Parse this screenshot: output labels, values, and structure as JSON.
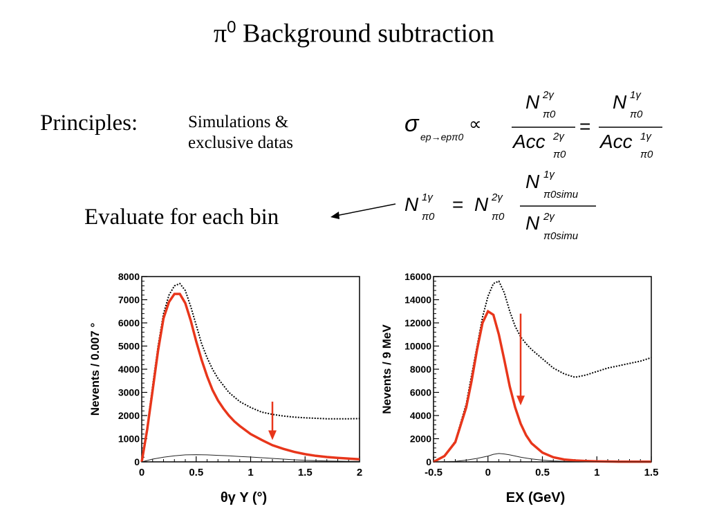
{
  "slide": {
    "title_symbol": "π",
    "title_sup": "0",
    "title_text": " Background subtraction",
    "principles_label": "Principles:",
    "simulations_text": "Simulations & exclusive datas",
    "evaluate_text": "Evaluate for each bin"
  },
  "equations": {
    "sigma": "σ",
    "sigma_sub": "ep→epπ0",
    "prop": "∝",
    "equals": "=",
    "N": "N",
    "Acc": "Acc",
    "pi0": "π0",
    "two_gamma": "2γ",
    "one_gamma": "1γ",
    "pi0_simu": "π0simu"
  },
  "chart_data": [
    {
      "type": "line",
      "xlabel": "θγ Y (°)",
      "ylabel": "Nevents / 0.007 °",
      "xlim": [
        0,
        2
      ],
      "ylim": [
        0,
        8000
      ],
      "x_ticks": [
        "0",
        "0.5",
        "1",
        "1.5",
        "2"
      ],
      "y_ticks": [
        "0",
        "1000",
        "2000",
        "3000",
        "4000",
        "5000",
        "6000",
        "7000",
        "8000"
      ],
      "arrow_x": 1.2,
      "arrow_y_range": [
        2600,
        1000
      ],
      "series": [
        {
          "style": "dotted",
          "color": "#000000",
          "x": [
            0,
            0.05,
            0.1,
            0.15,
            0.2,
            0.25,
            0.3,
            0.35,
            0.4,
            0.45,
            0.5,
            0.55,
            0.6,
            0.65,
            0.7,
            0.75,
            0.8,
            0.85,
            0.9,
            1.0,
            1.1,
            1.2,
            1.3,
            1.4,
            1.5,
            1.6,
            1.7,
            1.8,
            1.9,
            2.0
          ],
          "values": [
            0,
            1500,
            3300,
            5000,
            6400,
            7200,
            7600,
            7700,
            7400,
            6700,
            5900,
            5100,
            4500,
            4000,
            3600,
            3300,
            3000,
            2800,
            2600,
            2350,
            2150,
            2050,
            1980,
            1930,
            1900,
            1880,
            1860,
            1860,
            1860,
            1870
          ]
        },
        {
          "style": "solid",
          "color": "#e8361b",
          "x": [
            0,
            0.05,
            0.1,
            0.15,
            0.2,
            0.25,
            0.3,
            0.35,
            0.4,
            0.45,
            0.5,
            0.55,
            0.6,
            0.65,
            0.7,
            0.75,
            0.8,
            0.85,
            0.9,
            1.0,
            1.1,
            1.2,
            1.3,
            1.4,
            1.5,
            1.6,
            1.7,
            1.8,
            1.9,
            2.0
          ],
          "values": [
            0,
            1400,
            3100,
            4800,
            6200,
            6900,
            7250,
            7250,
            6850,
            6100,
            5200,
            4400,
            3700,
            3100,
            2650,
            2300,
            2000,
            1750,
            1550,
            1200,
            950,
            720,
            560,
            430,
            330,
            260,
            210,
            170,
            140,
            110
          ]
        },
        {
          "style": "thin",
          "color": "#222222",
          "x": [
            0,
            0.1,
            0.2,
            0.3,
            0.4,
            0.5,
            0.6,
            0.7,
            0.8,
            0.9,
            1.0,
            1.1,
            1.2,
            1.3,
            1.4,
            1.5,
            1.6,
            1.7,
            1.8,
            1.9,
            2.0
          ],
          "values": [
            0,
            120,
            200,
            260,
            300,
            310,
            300,
            280,
            260,
            230,
            210,
            180,
            150,
            120,
            90,
            70,
            50,
            40,
            30,
            25,
            20
          ]
        }
      ]
    },
    {
      "type": "line",
      "xlabel": "EX (GeV)",
      "ylabel": "Nevents / 9 MeV",
      "xlim": [
        -0.5,
        1.5
      ],
      "ylim": [
        0,
        16000
      ],
      "x_ticks": [
        "-0.5",
        "0",
        "0.5",
        "1",
        "1.5"
      ],
      "y_ticks": [
        "0",
        "2000",
        "4000",
        "6000",
        "8000",
        "10000",
        "12000",
        "14000",
        "16000"
      ],
      "arrow_x": 0.3,
      "arrow_y_range": [
        12800,
        5000
      ],
      "series": [
        {
          "style": "dotted",
          "color": "#000000",
          "x": [
            -0.5,
            -0.4,
            -0.3,
            -0.2,
            -0.15,
            -0.1,
            -0.05,
            0,
            0.05,
            0.1,
            0.15,
            0.2,
            0.25,
            0.3,
            0.35,
            0.4,
            0.5,
            0.6,
            0.7,
            0.8,
            0.9,
            1.0,
            1.1,
            1.2,
            1.3,
            1.4,
            1.5
          ],
          "values": [
            0,
            500,
            1800,
            5000,
            7500,
            10000,
            12500,
            14300,
            15400,
            15600,
            14600,
            13000,
            11700,
            10800,
            10200,
            9700,
            8900,
            8100,
            7600,
            7300,
            7500,
            7800,
            8100,
            8300,
            8500,
            8700,
            9000
          ]
        },
        {
          "style": "solid",
          "color": "#e8361b",
          "x": [
            -0.5,
            -0.4,
            -0.3,
            -0.2,
            -0.15,
            -0.1,
            -0.05,
            0,
            0.05,
            0.1,
            0.15,
            0.2,
            0.25,
            0.3,
            0.35,
            0.4,
            0.5,
            0.6,
            0.7,
            0.8,
            0.9,
            1.0,
            1.1,
            1.2,
            1.3,
            1.4,
            1.5
          ],
          "values": [
            0,
            500,
            1700,
            4700,
            7000,
            9700,
            12000,
            13000,
            12700,
            11000,
            8800,
            6500,
            4700,
            3300,
            2300,
            1600,
            800,
            400,
            200,
            120,
            80,
            50,
            30,
            20,
            15,
            10,
            10
          ]
        },
        {
          "style": "thin",
          "color": "#222222",
          "x": [
            -0.5,
            -0.3,
            -0.2,
            -0.1,
            0,
            0.05,
            0.1,
            0.15,
            0.2,
            0.3,
            0.4,
            0.5,
            0.6,
            0.7,
            0.8,
            1.0,
            1.2,
            1.5
          ],
          "values": [
            0,
            50,
            150,
            300,
            500,
            650,
            720,
            680,
            600,
            400,
            250,
            150,
            80,
            40,
            20,
            10,
            5,
            0
          ]
        }
      ]
    }
  ]
}
